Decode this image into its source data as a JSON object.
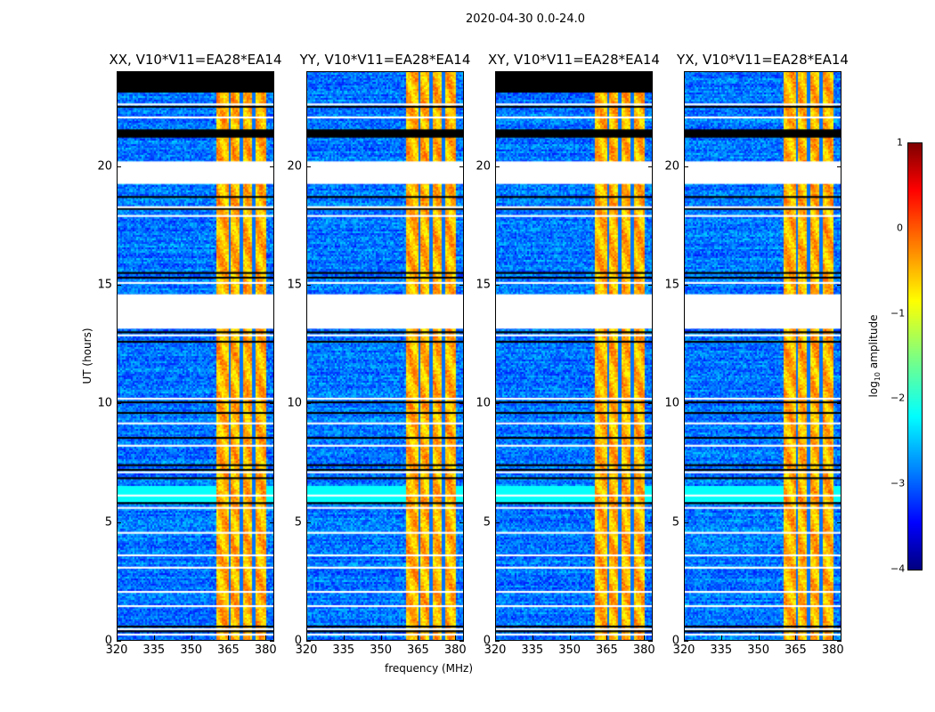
{
  "chart_data": {
    "type": "heatmap",
    "title": "2020-04-30 0.0-24.0",
    "xlabel": "frequency (MHz)",
    "ylabel": "UT (hours)",
    "xlim": [
      320,
      383.5
    ],
    "ylim": [
      0,
      24
    ],
    "xticks": [
      "320",
      "335",
      "350",
      "365",
      "380"
    ],
    "yticks": [
      "0",
      "5",
      "10",
      "15",
      "20"
    ],
    "colorbar": {
      "label_pre": "log",
      "label_sub": "10",
      "label_post": " amplitude",
      "range": [
        -4,
        1
      ],
      "ticks": [
        "1",
        "0",
        "−1",
        "−2",
        "−3",
        "−4"
      ],
      "colormap": "jet"
    },
    "panels": [
      {
        "title": "XX, V10*V11=EA28*EA14",
        "top_blank": true
      },
      {
        "title": "YY, V10*V11=EA28*EA14",
        "top_blank": false
      },
      {
        "title": "XY, V10*V11=EA28*EA14",
        "top_blank": true
      },
      {
        "title": "YX, V10*V11=EA28*EA14",
        "top_blank": false
      }
    ],
    "background_level": -2.8,
    "band_MHz": [
      360,
      380
    ],
    "band_level": -0.5,
    "band_gaps_MHz": [
      365,
      370,
      375
    ],
    "flagged_white_hours": [
      [
        19.25,
        20.2
      ],
      [
        13.15,
        14.6
      ]
    ],
    "flagged_white_lines_hours": [
      22.6,
      22.05,
      18.27,
      17.9,
      15.08,
      12.87,
      10.2,
      9.16,
      8.22,
      7.1,
      6.12,
      5.6,
      4.55,
      3.6,
      3.08,
      2.06,
      1.46,
      0.49,
      0.26
    ],
    "flagged_black_hours": [
      [
        21.2,
        21.55
      ],
      [
        23.1,
        24.0
      ]
    ],
    "flagged_black_lines_hours": [
      22.5,
      18.7,
      18.2,
      15.5,
      15.3,
      13.0,
      12.6,
      10.05,
      9.6,
      8.55,
      7.4,
      7.2,
      6.85,
      5.8,
      0.6,
      0.4
    ]
  }
}
